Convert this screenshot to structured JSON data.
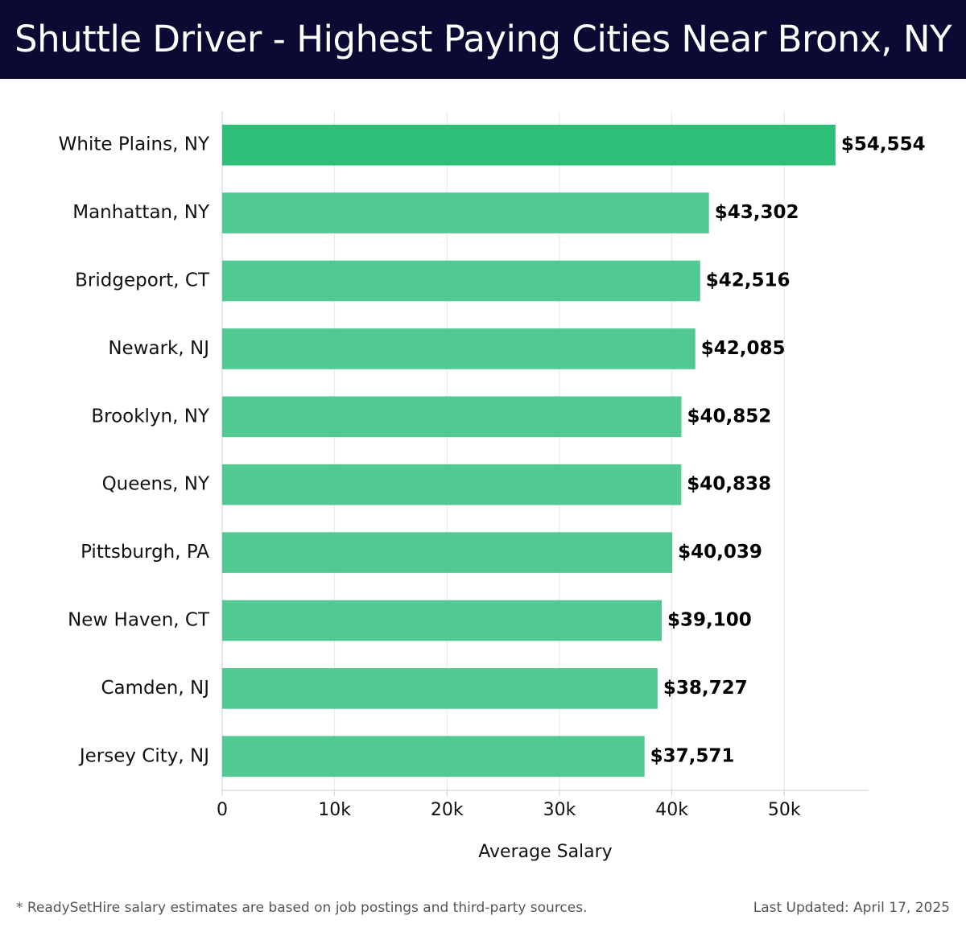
{
  "header": {
    "title": "Shuttle Driver - Highest Paying Cities Near Bronx, NY"
  },
  "chart_data": {
    "type": "bar",
    "orientation": "horizontal",
    "categories": [
      "White Plains, NY",
      "Manhattan, NY",
      "Bridgeport, CT",
      "Newark, NJ",
      "Brooklyn, NY",
      "Queens, NY",
      "Pittsburgh, PA",
      "New Haven, CT",
      "Camden, NJ",
      "Jersey City, NJ"
    ],
    "values": [
      54554,
      43302,
      42516,
      42085,
      40852,
      40838,
      40039,
      39100,
      38727,
      37571
    ],
    "value_labels": [
      "$54,554",
      "$43,302",
      "$42,516",
      "$42,085",
      "$40,852",
      "$40,838",
      "$40,039",
      "$39,100",
      "$38,727",
      "$37,571"
    ],
    "xlabel": "Average Salary",
    "ylabel": "",
    "xlim": [
      0,
      57500
    ],
    "xticks": [
      0,
      10000,
      20000,
      30000,
      40000,
      50000
    ],
    "xtick_labels": [
      "0",
      "10k",
      "20k",
      "30k",
      "40k",
      "50k"
    ],
    "grid": true,
    "colors": {
      "top_bar": "#2dbf78",
      "bar": "#52c993",
      "header_bg": "#0a0a33"
    }
  },
  "footer": {
    "note": "* ReadySetHire salary estimates are based on job postings and third-party sources.",
    "updated": "Last Updated: April 17, 2025"
  }
}
